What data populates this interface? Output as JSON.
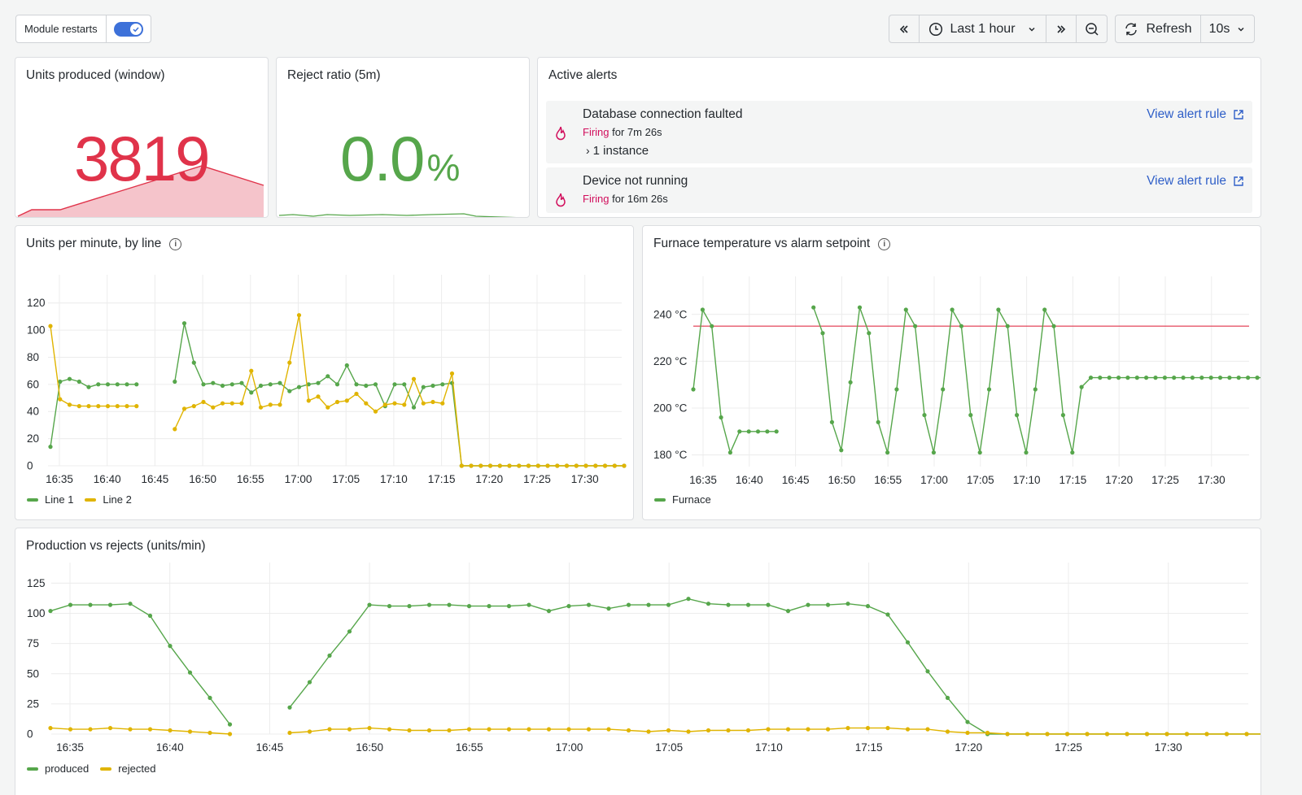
{
  "toolbar": {
    "module_restarts_label": "Module restarts",
    "time_range_label": "Last 1 hour",
    "refresh_label": "Refresh",
    "refresh_interval": "10s"
  },
  "units_produced": {
    "title": "Units produced (window)",
    "value": "3819",
    "color": "#e0334a"
  },
  "reject_ratio": {
    "title": "Reject ratio (5m)",
    "value": "0.0",
    "unit": "%",
    "color": "#56a64b"
  },
  "alerts": {
    "title": "Active alerts",
    "items": [
      {
        "name": "Database connection faulted",
        "state": "Firing",
        "duration": "for 7m 26s",
        "instances": "1 instance",
        "link": "View alert rule"
      },
      {
        "name": "Device not running",
        "state": "Firing",
        "duration": "for 16m 26s",
        "link": "View alert rule"
      }
    ]
  },
  "colors": {
    "green": "#56a64b",
    "yellow": "#e0b400",
    "red": "#e0334a",
    "link": "#2f5fc8"
  },
  "charts": {
    "units_per_line": {
      "title": "Units per minute, by line",
      "type": "line",
      "y_ticks": [
        "120",
        "100",
        "80",
        "60",
        "40",
        "20",
        "0"
      ],
      "x_ticks": [
        "16:35",
        "16:40",
        "16:45",
        "16:50",
        "16:55",
        "17:00",
        "17:05",
        "17:10",
        "17:15",
        "17:20",
        "17:25",
        "17:30"
      ],
      "legend": [
        "Line 1",
        "Line 2"
      ]
    },
    "furnace": {
      "title": "Furnace temperature vs alarm setpoint",
      "type": "line",
      "y_ticks": [
        "240 °C",
        "220 °C",
        "200 °C",
        "180 °C"
      ],
      "x_ticks": [
        "16:35",
        "16:40",
        "16:45",
        "16:50",
        "16:55",
        "17:00",
        "17:05",
        "17:10",
        "17:15",
        "17:20",
        "17:25",
        "17:30"
      ],
      "legend": [
        "Furnace"
      ]
    },
    "production": {
      "title": "Production vs rejects (units/min)",
      "type": "line",
      "y_ticks": [
        "125",
        "100",
        "75",
        "50",
        "25",
        "0"
      ],
      "x_ticks": [
        "16:35",
        "16:40",
        "16:45",
        "16:50",
        "16:55",
        "17:00",
        "17:05",
        "17:10",
        "17:15",
        "17:20",
        "17:25",
        "17:30"
      ],
      "legend": [
        "produced",
        "rejected"
      ]
    }
  },
  "chart_data": [
    {
      "type": "line",
      "title": "Units per minute, by line",
      "ylim": [
        0,
        130
      ],
      "x_start_label": "16:34",
      "series": [
        {
          "name": "Line 1",
          "values": [
            14,
            62,
            64,
            62,
            58,
            60,
            60,
            60,
            60,
            60,
            null,
            null,
            null,
            62,
            105,
            76,
            60,
            61,
            59,
            60,
            61,
            54,
            59,
            60,
            61,
            55,
            58,
            60,
            61,
            66,
            60,
            74,
            60,
            59,
            60,
            44,
            60,
            60,
            43,
            58,
            59,
            60,
            61,
            0,
            0,
            0,
            0,
            0,
            0,
            0,
            0,
            0,
            0,
            0,
            0,
            0,
            0,
            0,
            0,
            0,
            0
          ]
        },
        {
          "name": "Line 2",
          "values": [
            103,
            49,
            45,
            44,
            44,
            44,
            44,
            44,
            44,
            44,
            null,
            null,
            null,
            27,
            42,
            44,
            47,
            43,
            46,
            46,
            46,
            70,
            43,
            45,
            45,
            76,
            111,
            48,
            51,
            43,
            47,
            48,
            53,
            46,
            40,
            45,
            46,
            45,
            64,
            46,
            47,
            46,
            68,
            0,
            0,
            0,
            0,
            0,
            0,
            0,
            0,
            0,
            0,
            0,
            0,
            0,
            0,
            0,
            0,
            0,
            0
          ]
        }
      ]
    },
    {
      "type": "line",
      "title": "Furnace temperature vs alarm setpoint",
      "ylim": [
        175,
        250
      ],
      "setpoint": 235,
      "series": [
        {
          "name": "Furnace",
          "values": [
            208,
            242,
            235,
            196,
            181,
            190,
            190,
            190,
            190,
            190,
            null,
            null,
            null,
            243,
            232,
            194,
            182,
            211,
            243,
            232,
            194,
            181,
            208,
            242,
            235,
            197,
            181,
            208,
            242,
            235,
            197,
            181,
            208,
            242,
            235,
            197,
            181,
            208,
            242,
            235,
            197,
            181,
            209,
            213,
            213,
            213,
            213,
            213,
            213,
            213,
            213,
            213,
            213,
            213,
            213,
            213,
            213,
            213,
            213,
            213,
            213,
            213,
            213,
            213,
            213
          ]
        }
      ]
    },
    {
      "type": "line",
      "title": "Production vs rejects (units/min)",
      "ylim": [
        0,
        130
      ],
      "series": [
        {
          "name": "produced",
          "values": [
            102,
            107,
            107,
            107,
            108,
            98,
            73,
            51,
            30,
            8,
            null,
            null,
            22,
            43,
            65,
            85,
            107,
            106,
            106,
            107,
            107,
            106,
            106,
            106,
            107,
            102,
            106,
            107,
            104,
            107,
            107,
            107,
            112,
            108,
            107,
            107,
            107,
            102,
            107,
            107,
            108,
            106,
            99,
            76,
            52,
            30,
            10,
            0,
            0,
            0,
            0,
            0,
            0,
            0,
            0,
            0,
            0,
            0,
            0,
            0,
            0,
            0,
            0,
            0,
            0
          ]
        },
        {
          "name": "rejected",
          "values": [
            5,
            4,
            4,
            5,
            4,
            4,
            3,
            2,
            1,
            0,
            null,
            null,
            1,
            2,
            4,
            4,
            5,
            4,
            3,
            3,
            3,
            4,
            4,
            4,
            4,
            4,
            4,
            4,
            4,
            3,
            2,
            3,
            2,
            3,
            3,
            3,
            4,
            4,
            4,
            4,
            5,
            5,
            5,
            4,
            4,
            2,
            1,
            1,
            0,
            0,
            0,
            0,
            0,
            0,
            0,
            0,
            0,
            0,
            0,
            0,
            0,
            0,
            0,
            0,
            0
          ]
        }
      ]
    }
  ]
}
